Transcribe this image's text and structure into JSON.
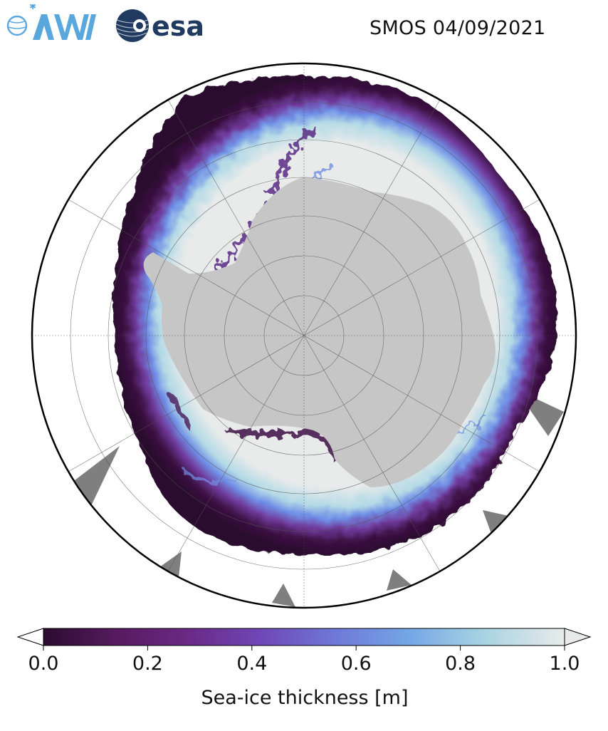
{
  "header": {
    "logo_awi": "AWI",
    "logo_esa": "esa",
    "title": "SMOS 04/09/2021"
  },
  "map": {
    "projection": "south-polar-stereographic",
    "gridlines": true,
    "colors": {
      "land": "#c6c6c6",
      "missing": "#7f7f7f",
      "ocean": "#ffffff",
      "thick_ice": "#e9ebeb",
      "thin_ice": "#2b0c2f"
    }
  },
  "colorbar": {
    "label": "Sea-ice thickness [m]",
    "ticks": [
      "0.0",
      "0.2",
      "0.4",
      "0.6",
      "0.8",
      "1.0"
    ],
    "tick_values": [
      0.0,
      0.2,
      0.4,
      0.6,
      0.8,
      1.0
    ],
    "range": [
      0.0,
      1.0
    ],
    "extend": "both",
    "colormap": [
      "#2b0c2f",
      "#561a5f",
      "#6f3a9b",
      "#7162cf",
      "#6f8fe6",
      "#8cc0e2",
      "#c6e2e8",
      "#e9ebeb"
    ]
  }
}
